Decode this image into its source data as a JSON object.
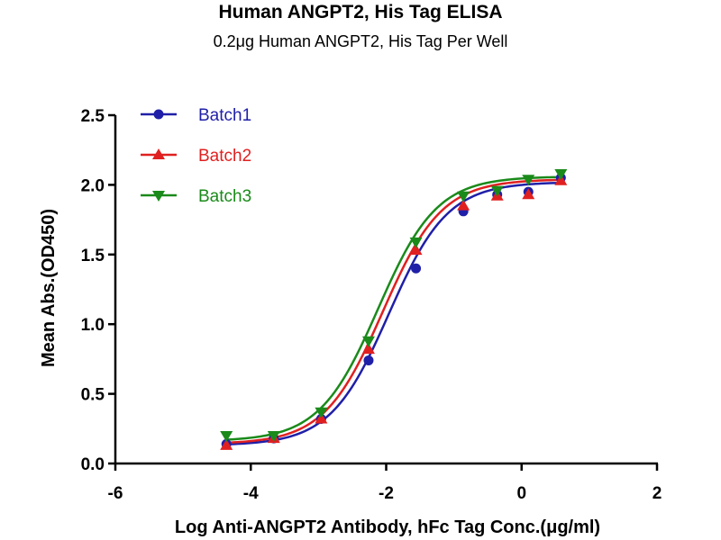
{
  "chart_data": {
    "type": "scatter",
    "title": "Human ANGPT2, His Tag ELISA",
    "subtitle": "0.2μg Human ANGPT2, His Tag Per Well",
    "xlabel": "Log Anti-ANGPT2 Antibody, hFc Tag Conc.(μg/ml)",
    "ylabel": "Mean Abs.(OD450)",
    "xlim": [
      -6,
      2
    ],
    "ylim": [
      0,
      2.5
    ],
    "xticks": [
      -6,
      -4,
      -2,
      0,
      2
    ],
    "yticks": [
      0.0,
      0.5,
      1.0,
      1.5,
      2.0,
      2.5
    ],
    "xtick_labels": [
      "-6",
      "-4",
      "-2",
      "0",
      "2"
    ],
    "ytick_labels": [
      "0.0",
      "0.5",
      "1.0",
      "1.5",
      "2.0",
      "2.5"
    ],
    "legend_position": "top-left",
    "grid": false,
    "series": [
      {
        "name": "Batch1",
        "color": "#1f1fa8",
        "marker": "circle",
        "x": [
          -4.36,
          -3.66,
          -2.96,
          -2.26,
          -1.56,
          -0.86,
          -0.36,
          0.1,
          0.58
        ],
        "y": [
          0.14,
          0.18,
          0.32,
          0.74,
          1.4,
          1.81,
          1.93,
          1.95,
          2.05
        ],
        "curve": {
          "bottom": 0.13,
          "top": 2.02,
          "logec50": -1.96,
          "hill": 1.0
        }
      },
      {
        "name": "Batch2",
        "color": "#e02020",
        "marker": "triangle-up",
        "x": [
          -4.36,
          -3.66,
          -2.96,
          -2.26,
          -1.56,
          -0.86,
          -0.36,
          0.1,
          0.58
        ],
        "y": [
          0.13,
          0.18,
          0.32,
          0.82,
          1.53,
          1.85,
          1.92,
          1.93,
          2.03
        ],
        "curve": {
          "bottom": 0.14,
          "top": 2.04,
          "logec50": -2.05,
          "hill": 1.0
        }
      },
      {
        "name": "Batch3",
        "color": "#1a8a1a",
        "marker": "triangle-down",
        "x": [
          -4.36,
          -3.66,
          -2.96,
          -2.26,
          -1.56,
          -0.86,
          -0.36,
          0.1,
          0.58
        ],
        "y": [
          0.2,
          0.2,
          0.37,
          0.88,
          1.59,
          1.92,
          1.96,
          2.04,
          2.08
        ],
        "curve": {
          "bottom": 0.16,
          "top": 2.06,
          "logec50": -2.12,
          "hill": 1.0
        }
      }
    ]
  }
}
